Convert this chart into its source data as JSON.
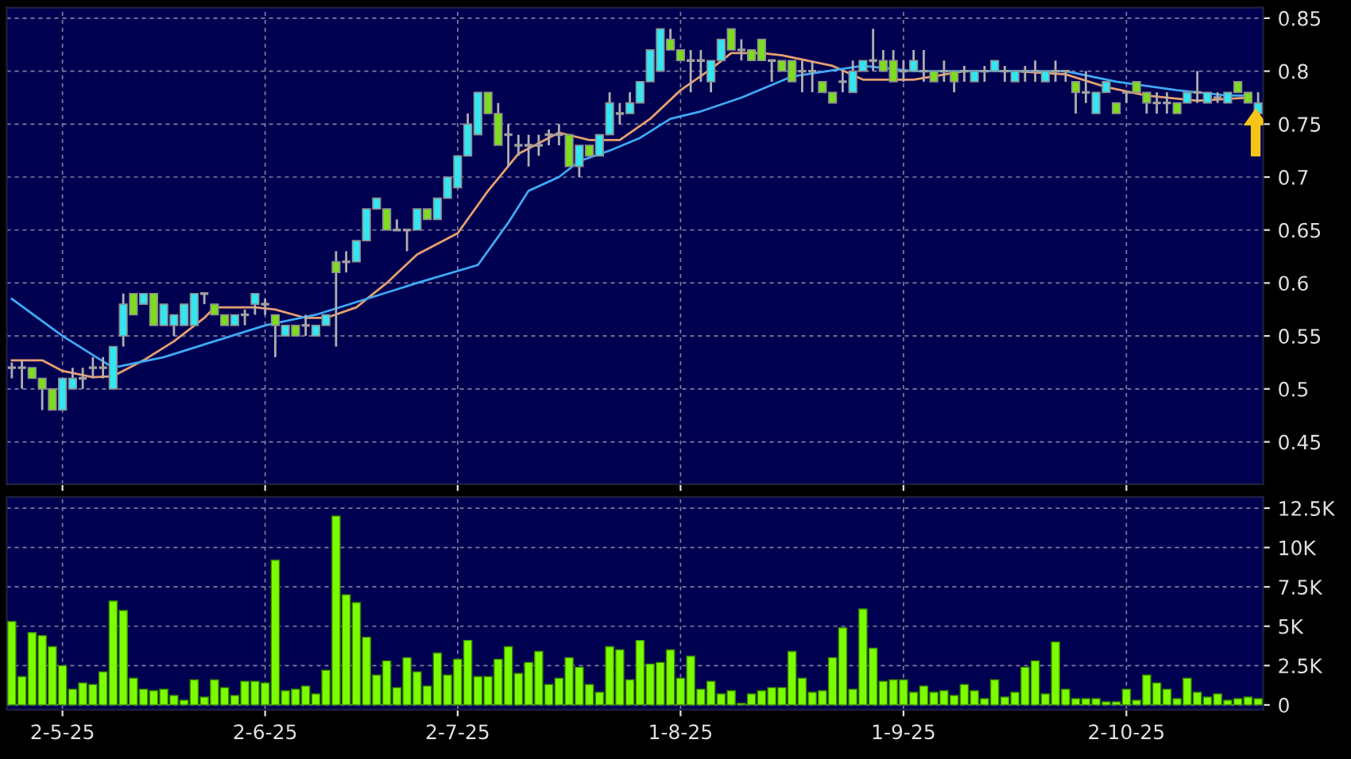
{
  "chart_data": [
    {
      "type": "candlestick",
      "categories": [
        null,
        null,
        null,
        null,
        null,
        null,
        null,
        null,
        null,
        null,
        null,
        null,
        null,
        null,
        null,
        null,
        null,
        null,
        null,
        null,
        null,
        null,
        null,
        null,
        null,
        null,
        null,
        null,
        null,
        null,
        null,
        null,
        null,
        null,
        null,
        null,
        null,
        null,
        null,
        null,
        null,
        null,
        null,
        null,
        null,
        null,
        null,
        null,
        null,
        null,
        null,
        null,
        null,
        null,
        null,
        null,
        null,
        null,
        null,
        null,
        null,
        null,
        null,
        null,
        null,
        null,
        null,
        null,
        null,
        null,
        null,
        null,
        null,
        null,
        null,
        null,
        null,
        null,
        null,
        null,
        null,
        null,
        null,
        null,
        null,
        null,
        null,
        null,
        null,
        null,
        null,
        null,
        null,
        null,
        null,
        null,
        null,
        null,
        null,
        null,
        null,
        null,
        null,
        null,
        null,
        null,
        null,
        null,
        null,
        null,
        null,
        null,
        null,
        null,
        null,
        null,
        null,
        null,
        null,
        null,
        null,
        null,
        null,
        null
      ],
      "ohlc": [
        [
          0.52,
          0.525,
          0.51,
          0.52
        ],
        [
          0.52,
          0.527,
          0.5,
          0.52
        ],
        [
          0.52,
          0.52,
          0.51,
          0.51
        ],
        [
          0.51,
          0.51,
          0.48,
          0.5
        ],
        [
          0.5,
          0.5,
          0.48,
          0.48
        ],
        [
          0.48,
          0.51,
          0.48,
          0.51
        ],
        [
          0.5,
          0.52,
          0.5,
          0.51
        ],
        [
          0.51,
          0.52,
          0.5,
          0.51
        ],
        [
          0.52,
          0.53,
          0.51,
          0.52
        ],
        [
          0.52,
          0.53,
          0.51,
          0.52
        ],
        [
          0.5,
          0.54,
          0.5,
          0.54
        ],
        [
          0.55,
          0.59,
          0.54,
          0.58
        ],
        [
          0.59,
          0.59,
          0.57,
          0.57
        ],
        [
          0.58,
          0.59,
          0.58,
          0.59
        ],
        [
          0.59,
          0.59,
          0.56,
          0.56
        ],
        [
          0.56,
          0.58,
          0.56,
          0.58
        ],
        [
          0.56,
          0.57,
          0.55,
          0.57
        ],
        [
          0.56,
          0.58,
          0.56,
          0.58
        ],
        [
          0.56,
          0.59,
          0.56,
          0.59
        ],
        [
          0.59,
          0.59,
          0.58,
          0.59
        ],
        [
          0.58,
          0.58,
          0.57,
          0.57
        ],
        [
          0.57,
          0.57,
          0.56,
          0.56
        ],
        [
          0.56,
          0.57,
          0.56,
          0.57
        ],
        [
          0.57,
          0.575,
          0.56,
          0.57
        ],
        [
          0.58,
          0.59,
          0.57,
          0.59
        ],
        [
          0.58,
          0.585,
          0.57,
          0.58
        ],
        [
          0.57,
          0.57,
          0.53,
          0.56
        ],
        [
          0.55,
          0.56,
          0.55,
          0.56
        ],
        [
          0.56,
          0.56,
          0.55,
          0.55
        ],
        [
          0.56,
          0.57,
          0.55,
          0.56
        ],
        [
          0.55,
          0.56,
          0.55,
          0.56
        ],
        [
          0.56,
          0.57,
          0.56,
          0.57
        ],
        [
          0.62,
          0.63,
          0.54,
          0.61
        ],
        [
          0.62,
          0.63,
          0.61,
          0.62
        ],
        [
          0.62,
          0.64,
          0.62,
          0.64
        ],
        [
          0.64,
          0.67,
          0.64,
          0.67
        ],
        [
          0.67,
          0.68,
          0.67,
          0.68
        ],
        [
          0.67,
          0.67,
          0.65,
          0.65
        ],
        [
          0.65,
          0.66,
          0.65,
          0.65
        ],
        [
          0.65,
          0.65,
          0.63,
          0.65
        ],
        [
          0.65,
          0.67,
          0.65,
          0.67
        ],
        [
          0.67,
          0.67,
          0.66,
          0.66
        ],
        [
          0.66,
          0.68,
          0.66,
          0.68
        ],
        [
          0.68,
          0.7,
          0.68,
          0.7
        ],
        [
          0.69,
          0.72,
          0.69,
          0.72
        ],
        [
          0.72,
          0.76,
          0.72,
          0.75
        ],
        [
          0.74,
          0.78,
          0.74,
          0.78
        ],
        [
          0.78,
          0.78,
          0.76,
          0.76
        ],
        [
          0.76,
          0.77,
          0.73,
          0.73
        ],
        [
          0.74,
          0.75,
          0.71,
          0.74
        ],
        [
          0.73,
          0.74,
          0.72,
          0.73
        ],
        [
          0.73,
          0.74,
          0.71,
          0.73
        ],
        [
          0.73,
          0.74,
          0.72,
          0.73
        ],
        [
          0.74,
          0.745,
          0.73,
          0.74
        ],
        [
          0.74,
          0.75,
          0.73,
          0.74
        ],
        [
          0.74,
          0.74,
          0.71,
          0.71
        ],
        [
          0.71,
          0.73,
          0.7,
          0.73
        ],
        [
          0.73,
          0.73,
          0.72,
          0.72
        ],
        [
          0.72,
          0.74,
          0.72,
          0.74
        ],
        [
          0.74,
          0.78,
          0.74,
          0.77
        ],
        [
          0.76,
          0.77,
          0.75,
          0.76
        ],
        [
          0.76,
          0.78,
          0.76,
          0.77
        ],
        [
          0.77,
          0.79,
          0.77,
          0.79
        ],
        [
          0.79,
          0.82,
          0.79,
          0.82
        ],
        [
          0.8,
          0.84,
          0.8,
          0.84
        ],
        [
          0.83,
          0.84,
          0.82,
          0.82
        ],
        [
          0.82,
          0.82,
          0.81,
          0.81
        ],
        [
          0.81,
          0.82,
          0.78,
          0.81
        ],
        [
          0.81,
          0.82,
          0.79,
          0.81
        ],
        [
          0.79,
          0.81,
          0.78,
          0.81
        ],
        [
          0.81,
          0.83,
          0.81,
          0.83
        ],
        [
          0.84,
          0.84,
          0.82,
          0.82
        ],
        [
          0.82,
          0.83,
          0.81,
          0.82
        ],
        [
          0.82,
          0.82,
          0.81,
          0.81
        ],
        [
          0.83,
          0.83,
          0.81,
          0.81
        ],
        [
          0.81,
          0.81,
          0.79,
          0.81
        ],
        [
          0.81,
          0.81,
          0.8,
          0.8
        ],
        [
          0.81,
          0.81,
          0.79,
          0.79
        ],
        [
          0.8,
          0.81,
          0.78,
          0.8
        ],
        [
          0.8,
          0.81,
          0.78,
          0.8
        ],
        [
          0.79,
          0.79,
          0.78,
          0.78
        ],
        [
          0.78,
          0.78,
          0.77,
          0.77
        ],
        [
          0.79,
          0.8,
          0.78,
          0.79
        ],
        [
          0.78,
          0.81,
          0.78,
          0.8
        ],
        [
          0.8,
          0.81,
          0.8,
          0.81
        ],
        [
          0.81,
          0.84,
          0.8,
          0.81
        ],
        [
          0.81,
          0.82,
          0.8,
          0.8
        ],
        [
          0.81,
          0.82,
          0.79,
          0.79
        ],
        [
          0.8,
          0.81,
          0.79,
          0.8
        ],
        [
          0.8,
          0.82,
          0.8,
          0.81
        ],
        [
          0.8,
          0.82,
          0.79,
          0.8
        ],
        [
          0.8,
          0.8,
          0.79,
          0.79
        ],
        [
          0.8,
          0.81,
          0.79,
          0.8
        ],
        [
          0.8,
          0.8,
          0.78,
          0.79
        ],
        [
          0.8,
          0.805,
          0.79,
          0.8
        ],
        [
          0.79,
          0.8,
          0.79,
          0.8
        ],
        [
          0.8,
          0.805,
          0.79,
          0.8
        ],
        [
          0.8,
          0.81,
          0.8,
          0.81
        ],
        [
          0.8,
          0.805,
          0.79,
          0.8
        ],
        [
          0.79,
          0.8,
          0.79,
          0.8
        ],
        [
          0.8,
          0.805,
          0.79,
          0.8
        ],
        [
          0.8,
          0.81,
          0.79,
          0.8
        ],
        [
          0.79,
          0.8,
          0.79,
          0.8
        ],
        [
          0.8,
          0.81,
          0.79,
          0.8
        ],
        [
          0.8,
          0.8,
          0.79,
          0.8
        ],
        [
          0.79,
          0.79,
          0.76,
          0.78
        ],
        [
          0.78,
          0.8,
          0.77,
          0.78
        ],
        [
          0.76,
          0.78,
          0.76,
          0.78
        ],
        [
          0.78,
          0.79,
          0.78,
          0.79
        ],
        [
          0.77,
          0.77,
          0.76,
          0.76
        ],
        [
          0.78,
          0.78,
          0.77,
          0.78
        ],
        [
          0.79,
          0.79,
          0.78,
          0.78
        ],
        [
          0.78,
          0.78,
          0.76,
          0.77
        ],
        [
          0.77,
          0.78,
          0.76,
          0.77
        ],
        [
          0.77,
          0.78,
          0.76,
          0.77
        ],
        [
          0.77,
          0.77,
          0.76,
          0.76
        ],
        [
          0.77,
          0.78,
          0.77,
          0.78
        ],
        [
          0.78,
          0.8,
          0.77,
          0.78
        ],
        [
          0.77,
          0.78,
          0.77,
          0.78
        ],
        [
          0.775,
          0.78,
          0.77,
          0.775
        ],
        [
          0.77,
          0.78,
          0.77,
          0.78
        ],
        [
          0.79,
          0.79,
          0.78,
          0.78
        ],
        [
          0.78,
          0.78,
          0.77,
          0.77
        ],
        [
          0.76,
          0.78,
          0.76,
          0.77
        ]
      ],
      "colors": [
        "#a0a0a0",
        "#a0a0a0",
        "#7ddc1f",
        "#7ddc1f",
        "#7ddc1f",
        "#33e6f2",
        "#33e6f2",
        "#a0a0a0",
        "#a0a0a0",
        "#a0a0a0",
        "#33e6f2",
        "#33e6f2",
        "#7ddc1f",
        "#33e6f2",
        "#7ddc1f",
        "#33e6f2",
        "#33e6f2",
        "#33e6f2",
        "#33e6f2",
        "#a0a0a0",
        "#7ddc1f",
        "#7ddc1f",
        "#33e6f2",
        "#a0a0a0",
        "#33e6f2",
        "#a0a0a0",
        "#7ddc1f",
        "#33e6f2",
        "#7ddc1f",
        "#a0a0a0",
        "#33e6f2",
        "#33e6f2",
        "#7ddc1f",
        "#a0a0a0",
        "#33e6f2",
        "#33e6f2",
        "#33e6f2",
        "#7ddc1f",
        "#a0a0a0",
        "#a0a0a0",
        "#33e6f2",
        "#7ddc1f",
        "#33e6f2",
        "#33e6f2",
        "#33e6f2",
        "#33e6f2",
        "#33e6f2",
        "#7ddc1f",
        "#7ddc1f",
        "#a0a0a0",
        "#a0a0a0",
        "#a0a0a0",
        "#a0a0a0",
        "#a0a0a0",
        "#a0a0a0",
        "#7ddc1f",
        "#33e6f2",
        "#7ddc1f",
        "#33e6f2",
        "#33e6f2",
        "#a0a0a0",
        "#33e6f2",
        "#33e6f2",
        "#33e6f2",
        "#33e6f2",
        "#7ddc1f",
        "#7ddc1f",
        "#a0a0a0",
        "#a0a0a0",
        "#33e6f2",
        "#33e6f2",
        "#7ddc1f",
        "#a0a0a0",
        "#7ddc1f",
        "#7ddc1f",
        "#a0a0a0",
        "#7ddc1f",
        "#7ddc1f",
        "#a0a0a0",
        "#a0a0a0",
        "#7ddc1f",
        "#7ddc1f",
        "#a0a0a0",
        "#33e6f2",
        "#33e6f2",
        "#a0a0a0",
        "#7ddc1f",
        "#7ddc1f",
        "#a0a0a0",
        "#33e6f2",
        "#a0a0a0",
        "#7ddc1f",
        "#a0a0a0",
        "#7ddc1f",
        "#a0a0a0",
        "#33e6f2",
        "#a0a0a0",
        "#33e6f2",
        "#a0a0a0",
        "#33e6f2",
        "#a0a0a0",
        "#a0a0a0",
        "#33e6f2",
        "#a0a0a0",
        "#a0a0a0",
        "#7ddc1f",
        "#a0a0a0",
        "#33e6f2",
        "#33e6f2",
        "#7ddc1f",
        "#a0a0a0",
        "#7ddc1f",
        "#7ddc1f",
        "#a0a0a0",
        "#a0a0a0",
        "#7ddc1f",
        "#33e6f2",
        "#a0a0a0",
        "#33e6f2",
        "#a0a0a0",
        "#33e6f2",
        "#7ddc1f",
        "#7ddc1f",
        "#33e6f2"
      ],
      "series": [
        {
          "type": "line",
          "color": "#e8a070",
          "values": [
            0.527,
            null,
            null,
            0.527,
            null,
            0.517,
            null,
            null,
            0.511,
            null,
            0.512,
            null,
            null,
            0.527,
            null,
            null,
            0.545,
            null,
            null,
            0.567,
            0.577,
            null,
            null,
            null,
            0.577,
            null,
            0.575,
            null,
            null,
            0.567,
            null,
            0.567,
            null,
            null,
            0.577,
            null,
            null,
            0.6,
            null,
            null,
            0.627,
            null,
            null,
            null,
            0.647,
            null,
            null,
            0.687,
            null,
            null,
            0.722,
            null,
            null,
            null,
            0.742,
            null,
            null,
            0.735,
            null,
            null,
            0.735,
            null,
            null,
            0.755,
            null,
            null,
            0.782,
            null,
            null,
            0.802,
            null,
            0.817,
            null,
            null,
            0.817,
            null,
            0.815,
            null,
            null,
            null,
            null,
            0.805,
            null,
            null,
            0.792,
            null,
            null,
            null,
            null,
            0.792,
            null,
            null,
            null,
            null,
            0.8,
            null,
            null,
            null,
            null,
            0.8,
            null,
            null,
            null,
            null,
            0.797,
            null,
            null,
            null,
            0.785,
            null,
            null,
            null,
            0.777,
            null,
            null,
            null,
            null,
            0.772,
            null,
            null,
            null,
            null,
            0.775,
            null
          ]
        },
        {
          "type": "line",
          "color": "#3fa9f5",
          "values": [
            0.585,
            null,
            null,
            null,
            null,
            0.55,
            null,
            null,
            null,
            null,
            0.52,
            null,
            null,
            null,
            null,
            0.53,
            null,
            null,
            null,
            null,
            0.545,
            null,
            null,
            null,
            null,
            0.56,
            null,
            null,
            null,
            null,
            0.57,
            null,
            null,
            null,
            null,
            0.585,
            null,
            null,
            null,
            null,
            0.6,
            null,
            null,
            null,
            null,
            null,
            0.617,
            null,
            null,
            0.657,
            null,
            0.687,
            null,
            null,
            0.7,
            null,
            0.715,
            null,
            null,
            0.725,
            null,
            null,
            0.737,
            null,
            null,
            0.755,
            null,
            null,
            0.762,
            null,
            null,
            null,
            0.775,
            null,
            null,
            0.787,
            null,
            0.795,
            null,
            null,
            null,
            null,
            null,
            null,
            0.805,
            null,
            null,
            null,
            null,
            0.8,
            null,
            null,
            null,
            null,
            null,
            null,
            null,
            null,
            null,
            0.8,
            null,
            null,
            null,
            null,
            0.8,
            null,
            null,
            null,
            null,
            0.79,
            null,
            null,
            null,
            null,
            null,
            0.782,
            null,
            null,
            null,
            null,
            0.777,
            null,
            0.777,
            null
          ]
        }
      ],
      "ylim": [
        0.41,
        0.86
      ],
      "yticks": [
        0.45,
        0.5,
        0.55,
        0.6,
        0.65,
        0.7,
        0.75,
        0.8,
        0.85
      ],
      "grid": true,
      "tick_labels": "y"
    },
    {
      "type": "bar",
      "categories": [
        null,
        null,
        null,
        null,
        null,
        "2-5-25",
        null,
        null,
        null,
        null,
        null,
        null,
        null,
        null,
        null,
        null,
        null,
        null,
        null,
        null,
        null,
        null,
        null,
        null,
        null,
        "2-6-25",
        null,
        null,
        null,
        null,
        null,
        null,
        null,
        null,
        null,
        null,
        null,
        null,
        null,
        null,
        null,
        null,
        null,
        null,
        "2-7-25",
        null,
        null,
        null,
        null,
        null,
        null,
        null,
        null,
        null,
        null,
        null,
        null,
        null,
        null,
        null,
        null,
        null,
        null,
        null,
        null,
        null,
        "1-8-25",
        null,
        null,
        null,
        null,
        null,
        null,
        null,
        null,
        null,
        null,
        null,
        null,
        null,
        null,
        null,
        null,
        null,
        null,
        null,
        null,
        null,
        "1-9-25",
        null,
        null,
        null,
        null,
        null,
        null,
        null,
        null,
        null,
        null,
        null,
        null,
        null,
        null,
        null,
        null,
        null,
        null,
        null,
        null,
        null,
        "2-10-25",
        null,
        null,
        null,
        null,
        null,
        null,
        null,
        null,
        null,
        null,
        null,
        null,
        null
      ],
      "values": [
        5300,
        1800,
        4600,
        4400,
        3700,
        2500,
        1000,
        1400,
        1300,
        2100,
        6600,
        6000,
        1700,
        1000,
        900,
        1000,
        600,
        300,
        1600,
        500,
        1600,
        1100,
        600,
        1500,
        1500,
        1400,
        9200,
        900,
        1000,
        1200,
        700,
        2200,
        12000,
        7000,
        6500,
        4300,
        1900,
        2800,
        1100,
        3000,
        2100,
        1200,
        3300,
        1900,
        2900,
        4100,
        1800,
        1800,
        2900,
        3700,
        2000,
        2700,
        3400,
        1300,
        1700,
        3000,
        2400,
        1300,
        800,
        3700,
        3500,
        1600,
        4100,
        2600,
        2700,
        3500,
        1700,
        3100,
        1000,
        1500,
        700,
        900,
        100,
        700,
        900,
        1100,
        1100,
        3400,
        1700,
        800,
        900,
        3000,
        4900,
        1000,
        6100,
        3600,
        1500,
        1600,
        1600,
        800,
        1200,
        800,
        900,
        600,
        1300,
        900,
        400,
        1600,
        500,
        800,
        2400,
        2800,
        700,
        4000,
        1000,
        400,
        400,
        400,
        200,
        200,
        1000,
        300,
        1900,
        1400,
        1000,
        400,
        1700,
        800,
        500,
        700,
        300,
        400,
        500,
        400
      ],
      "color": "#7cfc00",
      "ylim": [
        -300,
        13200
      ],
      "yticks": [
        0,
        {
          "value": 2500,
          "label": "2.5K"
        },
        {
          "value": 5000,
          "label": "5K"
        },
        {
          "value": 7500,
          "label": "7.5K"
        },
        {
          "value": 10000,
          "label": "10K"
        },
        {
          "value": 12500,
          "label": "12.5K"
        }
      ],
      "grid": true
    }
  ]
}
